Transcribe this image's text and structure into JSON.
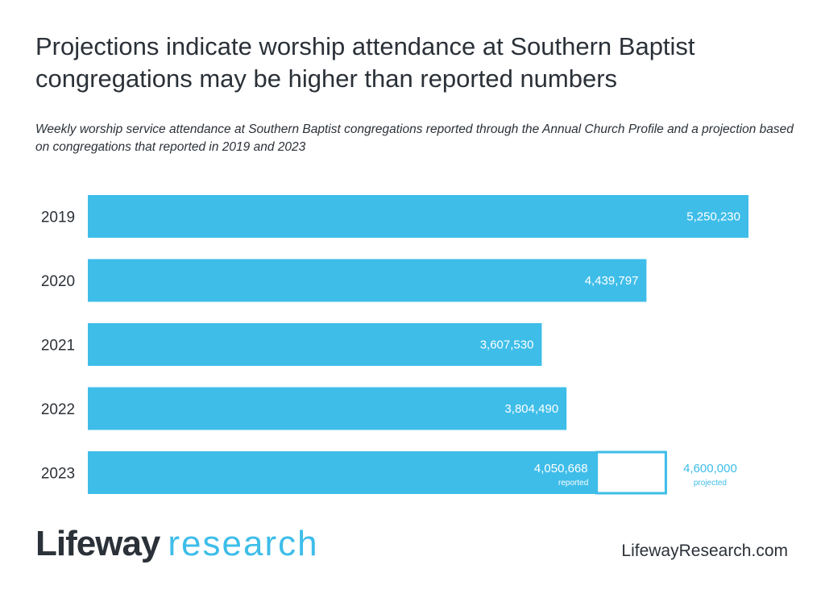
{
  "title": "Projections indicate worship attendance at Southern Baptist congregations may be higher than reported numbers",
  "subtitle": "Weekly worship service attendance at Southern Baptist congregations reported through the Annual Church Profile and a projection based on congregations that reported in 2019 and 2023",
  "logo": {
    "brand": "Lifeway",
    "brand2": "research"
  },
  "website": "LifewayResearch.com",
  "colors": {
    "bar": "#3ebde9",
    "text": "#2b3138",
    "label_inside": "#ffffff"
  },
  "chart_data": {
    "type": "bar",
    "orientation": "horizontal",
    "categories": [
      "2019",
      "2020",
      "2021",
      "2022",
      "2023"
    ],
    "values": [
      5250230,
      4439797,
      3607530,
      3804490,
      4050668
    ],
    "value_labels": [
      "5,250,230",
      "4,439,797",
      "3,607,530",
      "3,804,490",
      "4,050,668"
    ],
    "projection": {
      "category": "2023",
      "value": 4600000,
      "value_label": "4,600,000",
      "projected_caption": "projected",
      "reported_caption": "reported"
    },
    "xlim": [
      0,
      5250230
    ],
    "grid": false
  }
}
